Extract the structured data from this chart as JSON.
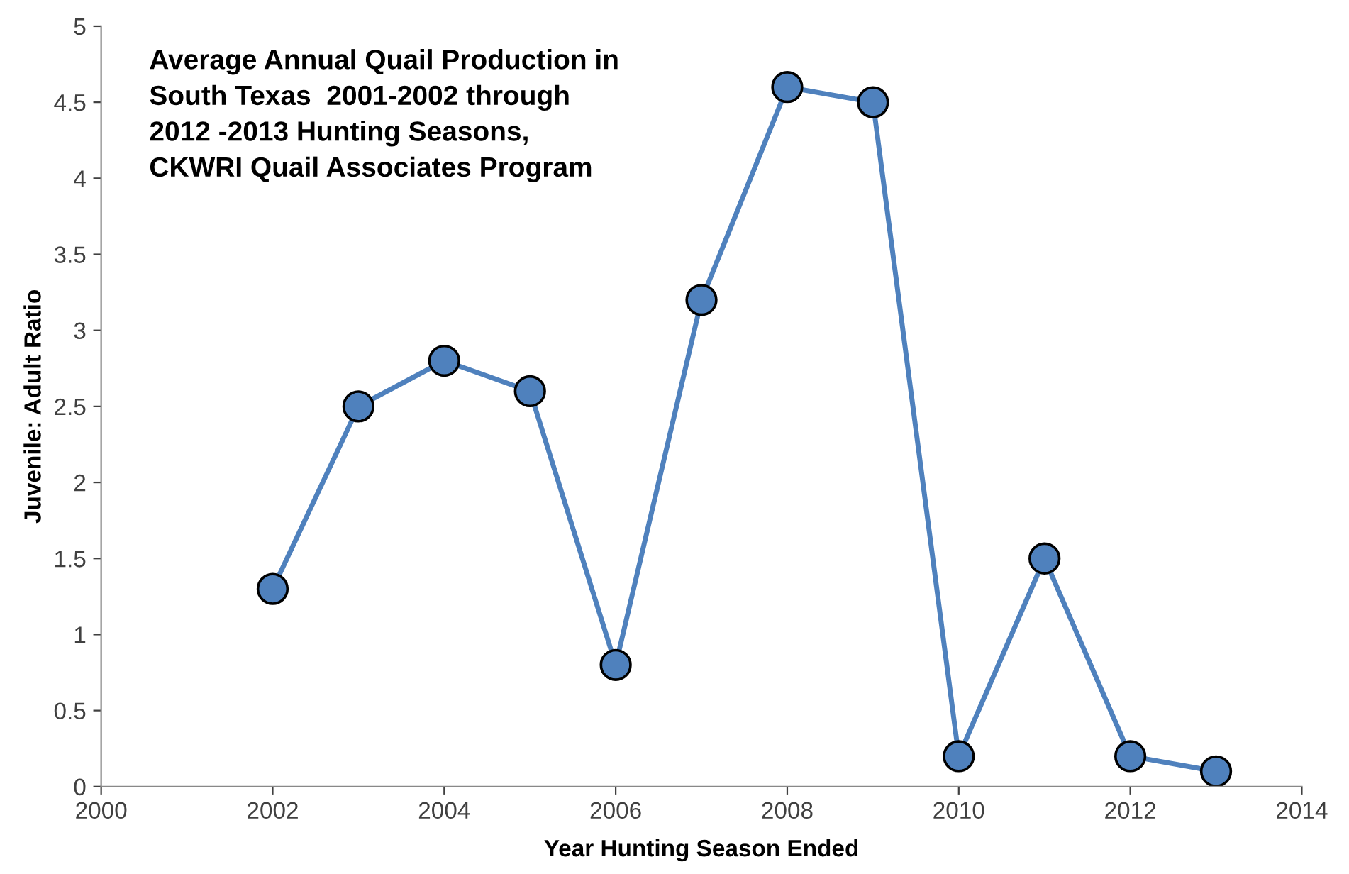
{
  "chart_data": {
    "type": "line",
    "title": "Average Annual Quail Production in\nSouth Texas  2001-2002 through\n2012 -2013 Hunting Seasons,\nCKWRI Quail Associates Program",
    "xlabel": "Year Hunting Season Ended",
    "ylabel": "Juvenile: Adult Ratio",
    "x": [
      2002,
      2003,
      2004,
      2005,
      2006,
      2007,
      2008,
      2009,
      2010,
      2011,
      2012,
      2013
    ],
    "series": [
      {
        "color": "#4f81bd",
        "values": [
          1.3,
          2.5,
          2.8,
          2.6,
          0.8,
          3.2,
          4.6,
          4.5,
          0.2,
          1.5,
          0.2,
          0.1
        ]
      }
    ],
    "xlim": [
      2000,
      2014
    ],
    "xticks": [
      2000,
      2002,
      2004,
      2006,
      2008,
      2010,
      2012,
      2014
    ],
    "ylim": [
      0,
      5
    ],
    "yticks": [
      0,
      0.5,
      1,
      1.5,
      2,
      2.5,
      3,
      3.5,
      4,
      4.5,
      5
    ],
    "marker": "circle",
    "line_style": "solid",
    "grid": false,
    "legend": false
  }
}
